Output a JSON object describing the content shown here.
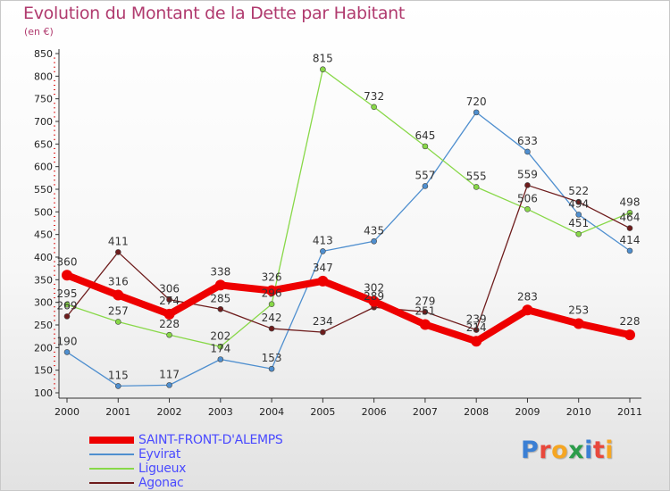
{
  "title": "Evolution du Montant de la Dette par Habitant",
  "subtitle": "(en €)",
  "logo": {
    "text": "Proxiti",
    "colors": [
      "#3b7fd4",
      "#e8483c",
      "#f5a623",
      "#2b9c4a",
      "#3b7fd4",
      "#e8483c",
      "#f5a623"
    ]
  },
  "chart_data": {
    "type": "line",
    "x": [
      "2000",
      "2001",
      "2002",
      "2003",
      "2004",
      "2005",
      "2006",
      "2007",
      "2008",
      "2009",
      "2010",
      "2011"
    ],
    "ylim": [
      100,
      850
    ],
    "yticks": [
      100,
      150,
      200,
      250,
      300,
      350,
      400,
      450,
      500,
      550,
      600,
      650,
      700,
      750,
      800,
      850
    ],
    "grid": false,
    "legend_position": "bottom-left",
    "series": [
      {
        "name": "SAINT-FRONT-D'ALEMPS",
        "color": "#ee0000",
        "bold": true,
        "values": [
          360,
          316,
          274,
          338,
          326,
          347,
          302,
          251,
          214,
          283,
          253,
          228
        ],
        "labels": [
          "360",
          "316",
          "274",
          "338",
          "326",
          "347",
          "302",
          "251",
          "214",
          "283",
          "253",
          "228"
        ]
      },
      {
        "name": "Eyvirat",
        "color": "#4f8fcf",
        "bold": false,
        "values": [
          190,
          115,
          117,
          174,
          153,
          413,
          435,
          557,
          720,
          633,
          494,
          414
        ],
        "labels": [
          "190",
          "115",
          "117",
          "174",
          "153",
          "413",
          "435",
          "557",
          "720",
          "633",
          "494",
          "414"
        ]
      },
      {
        "name": "Ligueux",
        "color": "#88d848",
        "bold": false,
        "values": [
          295,
          257,
          228,
          202,
          296,
          815,
          732,
          645,
          555,
          506,
          451,
          498
        ],
        "labels": [
          "295",
          "257",
          "228",
          "202",
          "296",
          "815",
          "732",
          "645",
          "555",
          "506",
          "451",
          "498"
        ]
      },
      {
        "name": "Agonac",
        "color": "#6e1c1c",
        "bold": false,
        "values": [
          269,
          411,
          306,
          285,
          242,
          234,
          289,
          279,
          239,
          559,
          522,
          464
        ],
        "labels": [
          "269",
          "411",
          "306",
          "285",
          "242",
          "234",
          "289",
          "279",
          "239",
          "559",
          "522",
          "464"
        ]
      }
    ]
  }
}
